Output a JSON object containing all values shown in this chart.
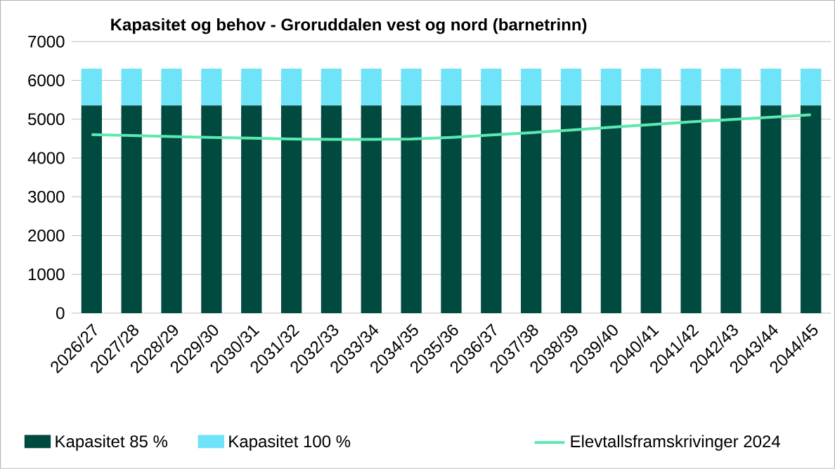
{
  "chart_data": {
    "type": "bar",
    "stacked": true,
    "title": "Kapasitet og behov - Groruddalen vest og nord (barnetrinn)",
    "categories": [
      "2026/27",
      "2027/28",
      "2028/29",
      "2029/30",
      "2030/31",
      "2031/32",
      "2032/33",
      "2033/34",
      "2034/35",
      "2035/36",
      "2036/37",
      "2037/38",
      "2038/39",
      "2039/40",
      "2040/41",
      "2041/42",
      "2042/43",
      "2043/44",
      "2044/45"
    ],
    "series": [
      {
        "name": "Kapasitet 85 %",
        "color": "#004a3f",
        "values": [
          5350,
          5350,
          5350,
          5350,
          5350,
          5350,
          5350,
          5350,
          5350,
          5350,
          5350,
          5350,
          5350,
          5350,
          5350,
          5350,
          5350,
          5350,
          5350
        ]
      },
      {
        "name": "Kapasitet 100 %",
        "color": "#6fe3f7",
        "values": [
          950,
          950,
          950,
          950,
          950,
          950,
          950,
          950,
          950,
          950,
          950,
          950,
          950,
          950,
          950,
          950,
          950,
          950,
          950
        ]
      },
      {
        "name": "Elevtallsframskrivinger 2024",
        "type": "line",
        "color": "#5ee8b0",
        "values": [
          4600,
          4580,
          4550,
          4530,
          4510,
          4490,
          4480,
          4480,
          4490,
          4530,
          4590,
          4650,
          4720,
          4790,
          4860,
          4930,
          4990,
          5050,
          5110
        ]
      }
    ],
    "ylim": [
      0,
      7000
    ],
    "yticks": [
      0,
      1000,
      2000,
      3000,
      4000,
      5000,
      6000,
      7000
    ],
    "grid": "y",
    "legend": "bottom",
    "marker": "none"
  }
}
